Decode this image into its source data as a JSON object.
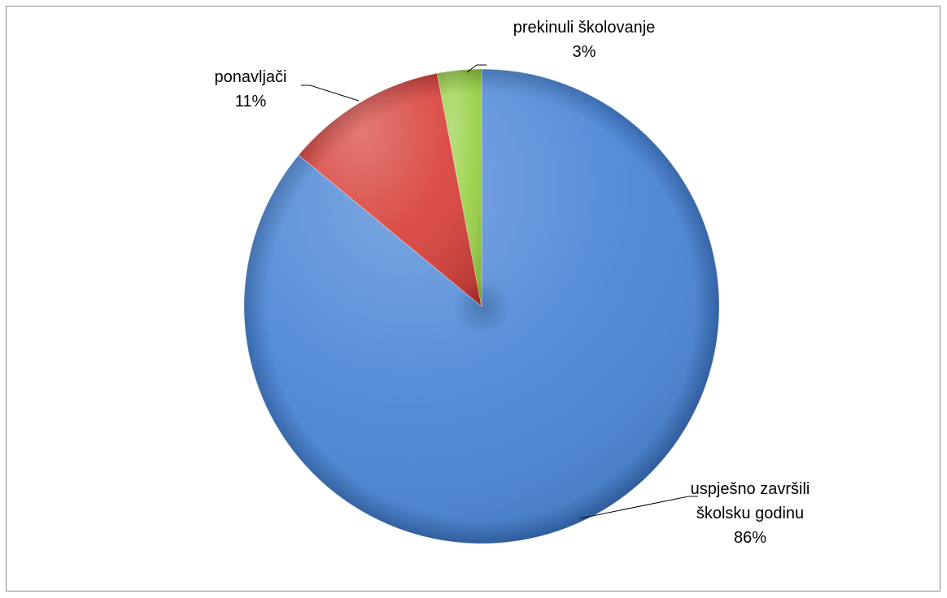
{
  "chart_data": {
    "type": "pie",
    "title": "",
    "slices": [
      {
        "label_lines": [
          "uspješno završili",
          "školsku godinu"
        ],
        "percent_label": "86%",
        "value": 86,
        "color": "#4a86d6",
        "dark": "#2f62a8"
      },
      {
        "label_lines": [
          "ponavljači"
        ],
        "percent_label": "11%",
        "value": 11,
        "color": "#d9453f",
        "dark": "#a52a25"
      },
      {
        "label_lines": [
          "prekinuli školovanje"
        ],
        "percent_label": "3%",
        "value": 3,
        "color": "#9bd24a",
        "dark": "#6e9e2a"
      }
    ],
    "start_angle_deg": 0,
    "direction": "clockwise",
    "legend": "none",
    "data_labels": "outside-with-leader-lines"
  }
}
